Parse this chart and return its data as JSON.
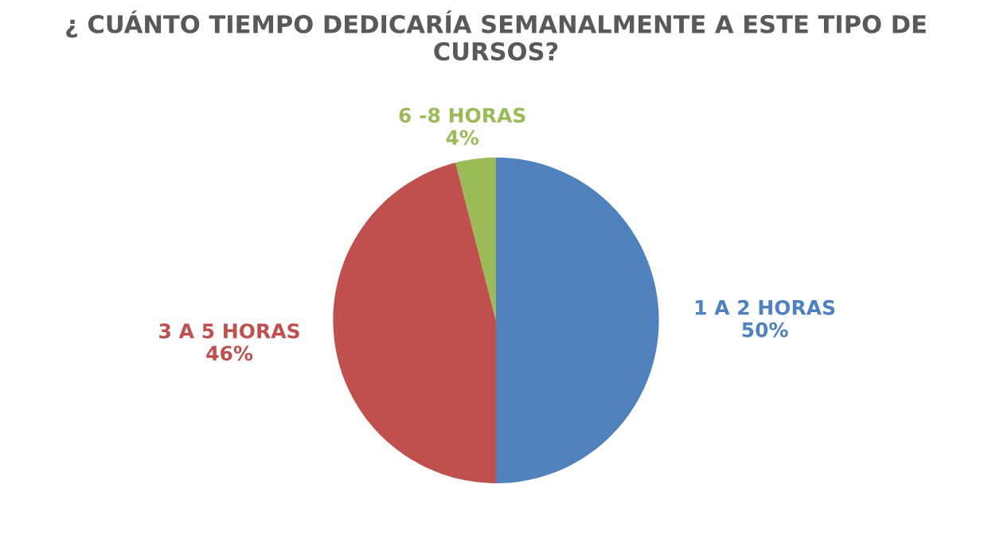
{
  "chart_data": {
    "type": "pie",
    "title": "¿ CUÁNTO TIEMPO DEDICARÍA SEMANALMENTE A ESTE TIPO DE CURSOS?",
    "categories": [
      "1 A 2 HORAS",
      "3 A 5 HORAS",
      "6 -8 HORAS"
    ],
    "values": [
      50,
      46,
      4
    ],
    "value_labels": [
      "50%",
      "46%",
      "4%"
    ],
    "colors": [
      "#4f81bd",
      "#c0504d",
      "#9bbb59"
    ]
  }
}
